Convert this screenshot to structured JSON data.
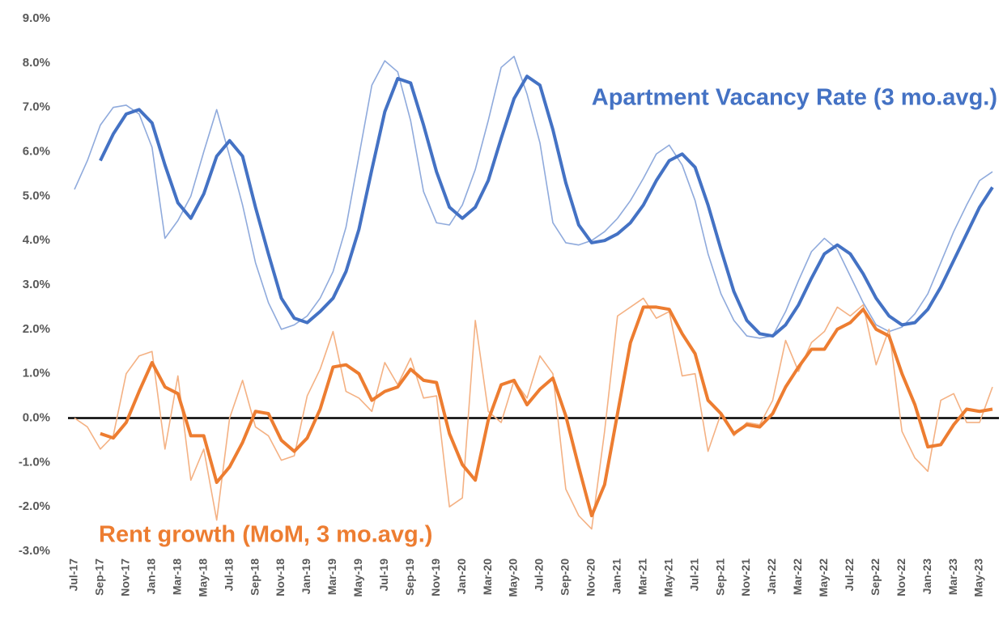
{
  "chart_data": {
    "type": "line",
    "categories": [
      "Jul-17",
      null,
      "Sep-17",
      null,
      "Nov-17",
      null,
      "Jan-18",
      null,
      "Mar-18",
      null,
      "May-18",
      null,
      "Jul-18",
      null,
      "Sep-18",
      null,
      "Nov-18",
      null,
      "Jan-19",
      null,
      "Mar-19",
      null,
      "May-19",
      null,
      "Jul-19",
      null,
      "Sep-19",
      null,
      "Nov-19",
      null,
      "Jan-20",
      null,
      "Mar-20",
      null,
      "May-20",
      null,
      "Jul-20",
      null,
      "Sep-20",
      null,
      "Nov-20",
      null,
      "Jan-21",
      null,
      "Mar-21",
      null,
      "May-21",
      null,
      "Jul-21",
      null,
      "Sep-21",
      null,
      "Nov-21",
      null,
      "Jan-22",
      null,
      "Mar-22",
      null,
      "May-22",
      null,
      "Jul-22",
      null,
      "Sep-22",
      null,
      "Nov-22",
      null,
      "Jan-23",
      null,
      "Mar-23",
      null,
      "May-23",
      null
    ],
    "series": [
      {
        "color": "#8faadc",
        "values": [
          5.15,
          5.8,
          6.6,
          7.0,
          7.05,
          6.85,
          6.1,
          4.05,
          4.45,
          5.0,
          6.0,
          6.95,
          5.9,
          4.8,
          3.5,
          2.6,
          2.0,
          2.1,
          2.3,
          2.7,
          3.3,
          4.3,
          5.9,
          7.5,
          8.05,
          7.8,
          6.7,
          5.1,
          4.4,
          4.35,
          4.8,
          5.6,
          6.7,
          7.9,
          8.15,
          7.3,
          6.2,
          4.4,
          3.95,
          3.9,
          4.0,
          4.2,
          4.5,
          4.9,
          5.4,
          5.95,
          6.15,
          5.7,
          4.9,
          3.7,
          2.8,
          2.2,
          1.85,
          1.8,
          1.85,
          2.4,
          3.1,
          3.75,
          4.05,
          3.8,
          3.2,
          2.6,
          2.1,
          1.95,
          2.05,
          2.35,
          2.8,
          3.5,
          4.2,
          4.8,
          5.35,
          5.55
        ]
      },
      {
        "name": "Apartment Vacancy Rate (3 mo.avg.)",
        "color": "#4472c4",
        "values": [
          null,
          null,
          5.8,
          6.4,
          6.85,
          6.95,
          6.65,
          5.7,
          4.85,
          4.5,
          5.05,
          5.9,
          6.25,
          5.9,
          4.75,
          3.7,
          2.7,
          2.25,
          2.15,
          2.4,
          2.7,
          3.3,
          4.25,
          5.6,
          6.9,
          7.65,
          7.55,
          6.6,
          5.55,
          4.75,
          4.5,
          4.75,
          5.35,
          6.3,
          7.2,
          7.7,
          7.5,
          6.5,
          5.3,
          4.35,
          3.95,
          4.0,
          4.15,
          4.4,
          4.8,
          5.35,
          5.8,
          5.95,
          5.65,
          4.8,
          3.8,
          2.85,
          2.2,
          1.9,
          1.85,
          2.1,
          2.55,
          3.15,
          3.7,
          3.9,
          3.7,
          3.25,
          2.7,
          2.3,
          2.1,
          2.15,
          2.45,
          2.95,
          3.55,
          4.15,
          4.75,
          5.2
        ]
      },
      {
        "color": "#f4b183",
        "values": [
          0.0,
          -0.2,
          -0.7,
          -0.4,
          1.0,
          1.4,
          1.5,
          -0.7,
          0.95,
          -1.4,
          -0.7,
          -2.3,
          0.0,
          0.85,
          -0.2,
          -0.4,
          -0.95,
          -0.85,
          0.5,
          1.1,
          1.95,
          0.6,
          0.45,
          0.15,
          1.25,
          0.75,
          1.35,
          0.45,
          0.5,
          -2.0,
          -1.8,
          2.2,
          0.15,
          -0.1,
          0.85,
          0.45,
          1.4,
          1.0,
          -1.6,
          -2.2,
          -2.5,
          -0.3,
          2.3,
          2.5,
          2.7,
          2.25,
          2.4,
          0.95,
          1.0,
          -0.75,
          0.1,
          -0.4,
          -0.1,
          -0.15,
          0.4,
          1.75,
          1.05,
          1.7,
          1.95,
          2.5,
          2.3,
          2.55,
          1.2,
          2.0,
          -0.3,
          -0.9,
          -1.2,
          0.4,
          0.55,
          -0.1,
          -0.1,
          0.7
        ]
      },
      {
        "name": "Rent growth (MoM, 3 mo.avg.)",
        "color": "#ed7d31",
        "values": [
          null,
          null,
          -0.35,
          -0.45,
          -0.1,
          0.6,
          1.25,
          0.7,
          0.55,
          -0.4,
          -0.4,
          -1.45,
          -1.1,
          -0.55,
          0.15,
          0.1,
          -0.5,
          -0.75,
          -0.45,
          0.2,
          1.15,
          1.2,
          1.0,
          0.4,
          0.6,
          0.7,
          1.1,
          0.85,
          0.8,
          -0.35,
          -1.05,
          -1.4,
          -0.05,
          0.75,
          0.85,
          0.3,
          0.65,
          0.9,
          0.05,
          -1.1,
          -2.2,
          -1.5,
          0.1,
          1.7,
          2.5,
          2.5,
          2.45,
          1.9,
          1.45,
          0.4,
          0.1,
          -0.35,
          -0.15,
          -0.2,
          0.1,
          0.7,
          1.15,
          1.55,
          1.55,
          2.0,
          2.15,
          2.45,
          2.0,
          1.85,
          1.0,
          0.3,
          -0.65,
          -0.6,
          -0.15,
          0.2,
          0.15,
          0.2
        ]
      }
    ],
    "ylim": [
      -3,
      9
    ],
    "yticks": [
      {
        "value": -3,
        "label": "-3.0%"
      },
      {
        "value": -2,
        "label": "-2.0%"
      },
      {
        "value": -1,
        "label": "-1.0%"
      },
      {
        "value": 0,
        "label": "0.0%"
      },
      {
        "value": 1,
        "label": "1.0%"
      },
      {
        "value": 2,
        "label": "2.0%"
      },
      {
        "value": 3,
        "label": "3.0%"
      },
      {
        "value": 4,
        "label": "4.0%"
      },
      {
        "value": 5,
        "label": "5.0%"
      },
      {
        "value": 6,
        "label": "6.0%"
      },
      {
        "value": 7,
        "label": "7.0%"
      },
      {
        "value": 8,
        "label": "8.0%"
      },
      {
        "value": 9,
        "label": "9.0%"
      }
    ],
    "grid": false
  }
}
